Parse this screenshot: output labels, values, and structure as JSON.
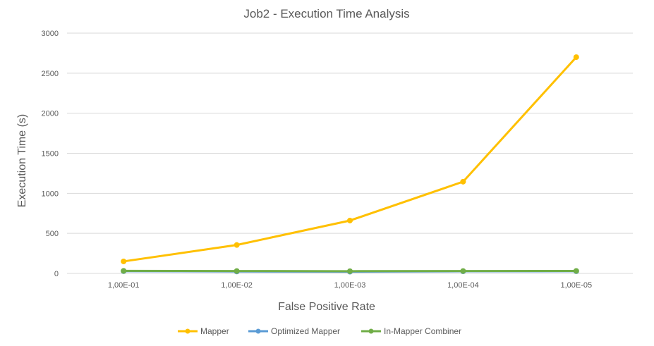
{
  "chart_data": {
    "type": "line",
    "title": "Job2 - Execution Time Analysis",
    "xlabel": "False Positive Rate",
    "ylabel": "Execution Time (s)",
    "categories": [
      "1,00E-01",
      "1,00E-02",
      "1,00E-03",
      "1,00E-04",
      "1,00E-05"
    ],
    "ylim": [
      0,
      3000
    ],
    "yticks": [
      "0",
      "500",
      "1000",
      "1500",
      "2000",
      "2500",
      "3000"
    ],
    "ytick_values": [
      0,
      500,
      1000,
      1500,
      2000,
      2500,
      3000
    ],
    "grid": true,
    "legend_position": "bottom",
    "series": [
      {
        "name": "Mapper",
        "color": "#FFC000",
        "values": [
          150,
          355,
          660,
          1145,
          2700
        ]
      },
      {
        "name": "Optimized Mapper",
        "color": "#5B9BD5",
        "values": [
          28,
          24,
          22,
          26,
          27
        ]
      },
      {
        "name": "In-Mapper Combiner",
        "color": "#70AD47",
        "values": [
          32,
          30,
          28,
          30,
          31
        ]
      }
    ]
  }
}
